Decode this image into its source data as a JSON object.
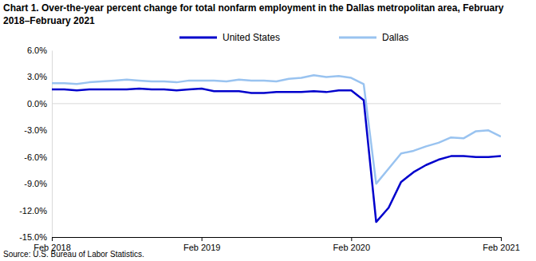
{
  "chart_data": {
    "type": "line",
    "title": "Chart 1. Over-the-year percent change for total nonfarm employment in the Dallas metropolitan area, February 2018–February 2021",
    "source": "Source: U.S. Bureau of Labor Statistics.",
    "categories": [
      "Feb 2018",
      null,
      null,
      null,
      null,
      null,
      null,
      null,
      null,
      null,
      null,
      null,
      "Feb 2019",
      null,
      null,
      null,
      null,
      null,
      null,
      null,
      null,
      null,
      null,
      null,
      "Feb 2020",
      null,
      null,
      null,
      null,
      null,
      null,
      null,
      null,
      null,
      null,
      null,
      "Feb 2021"
    ],
    "series": [
      {
        "name": "United States",
        "color": "#0000cc",
        "values": [
          1.6,
          1.6,
          1.5,
          1.6,
          1.6,
          1.6,
          1.6,
          1.7,
          1.6,
          1.6,
          1.5,
          1.6,
          1.7,
          1.4,
          1.4,
          1.4,
          1.2,
          1.2,
          1.3,
          1.3,
          1.3,
          1.4,
          1.3,
          1.5,
          1.5,
          0.4,
          -13.3,
          -11.7,
          -8.8,
          -7.7,
          -6.9,
          -6.3,
          -5.9,
          -5.9,
          -6.0,
          -6.0,
          -5.9
        ]
      },
      {
        "name": "Dallas",
        "color": "#99c3f0",
        "values": [
          2.3,
          2.3,
          2.2,
          2.4,
          2.5,
          2.6,
          2.7,
          2.6,
          2.5,
          2.5,
          2.4,
          2.6,
          2.6,
          2.6,
          2.5,
          2.7,
          2.6,
          2.6,
          2.5,
          2.8,
          2.9,
          3.2,
          3.0,
          3.1,
          2.9,
          2.2,
          -9.0,
          -7.3,
          -5.6,
          -5.3,
          -4.8,
          -4.4,
          -3.8,
          -3.9,
          -3.1,
          -3.0,
          -3.7
        ]
      }
    ],
    "ylim": [
      -15,
      6
    ],
    "yticks": [
      {
        "value": -15,
        "label": "-15.0%"
      },
      {
        "value": -12,
        "label": "-12.0%"
      },
      {
        "value": -9,
        "label": "-9.0%"
      },
      {
        "value": -6,
        "label": "-6.0%"
      },
      {
        "value": -3,
        "label": "-3.0%"
      },
      {
        "value": 0,
        "label": "0.0%"
      },
      {
        "value": 3,
        "label": "3.0%"
      },
      {
        "value": 6,
        "label": "6.0%"
      }
    ],
    "legend": "top"
  }
}
